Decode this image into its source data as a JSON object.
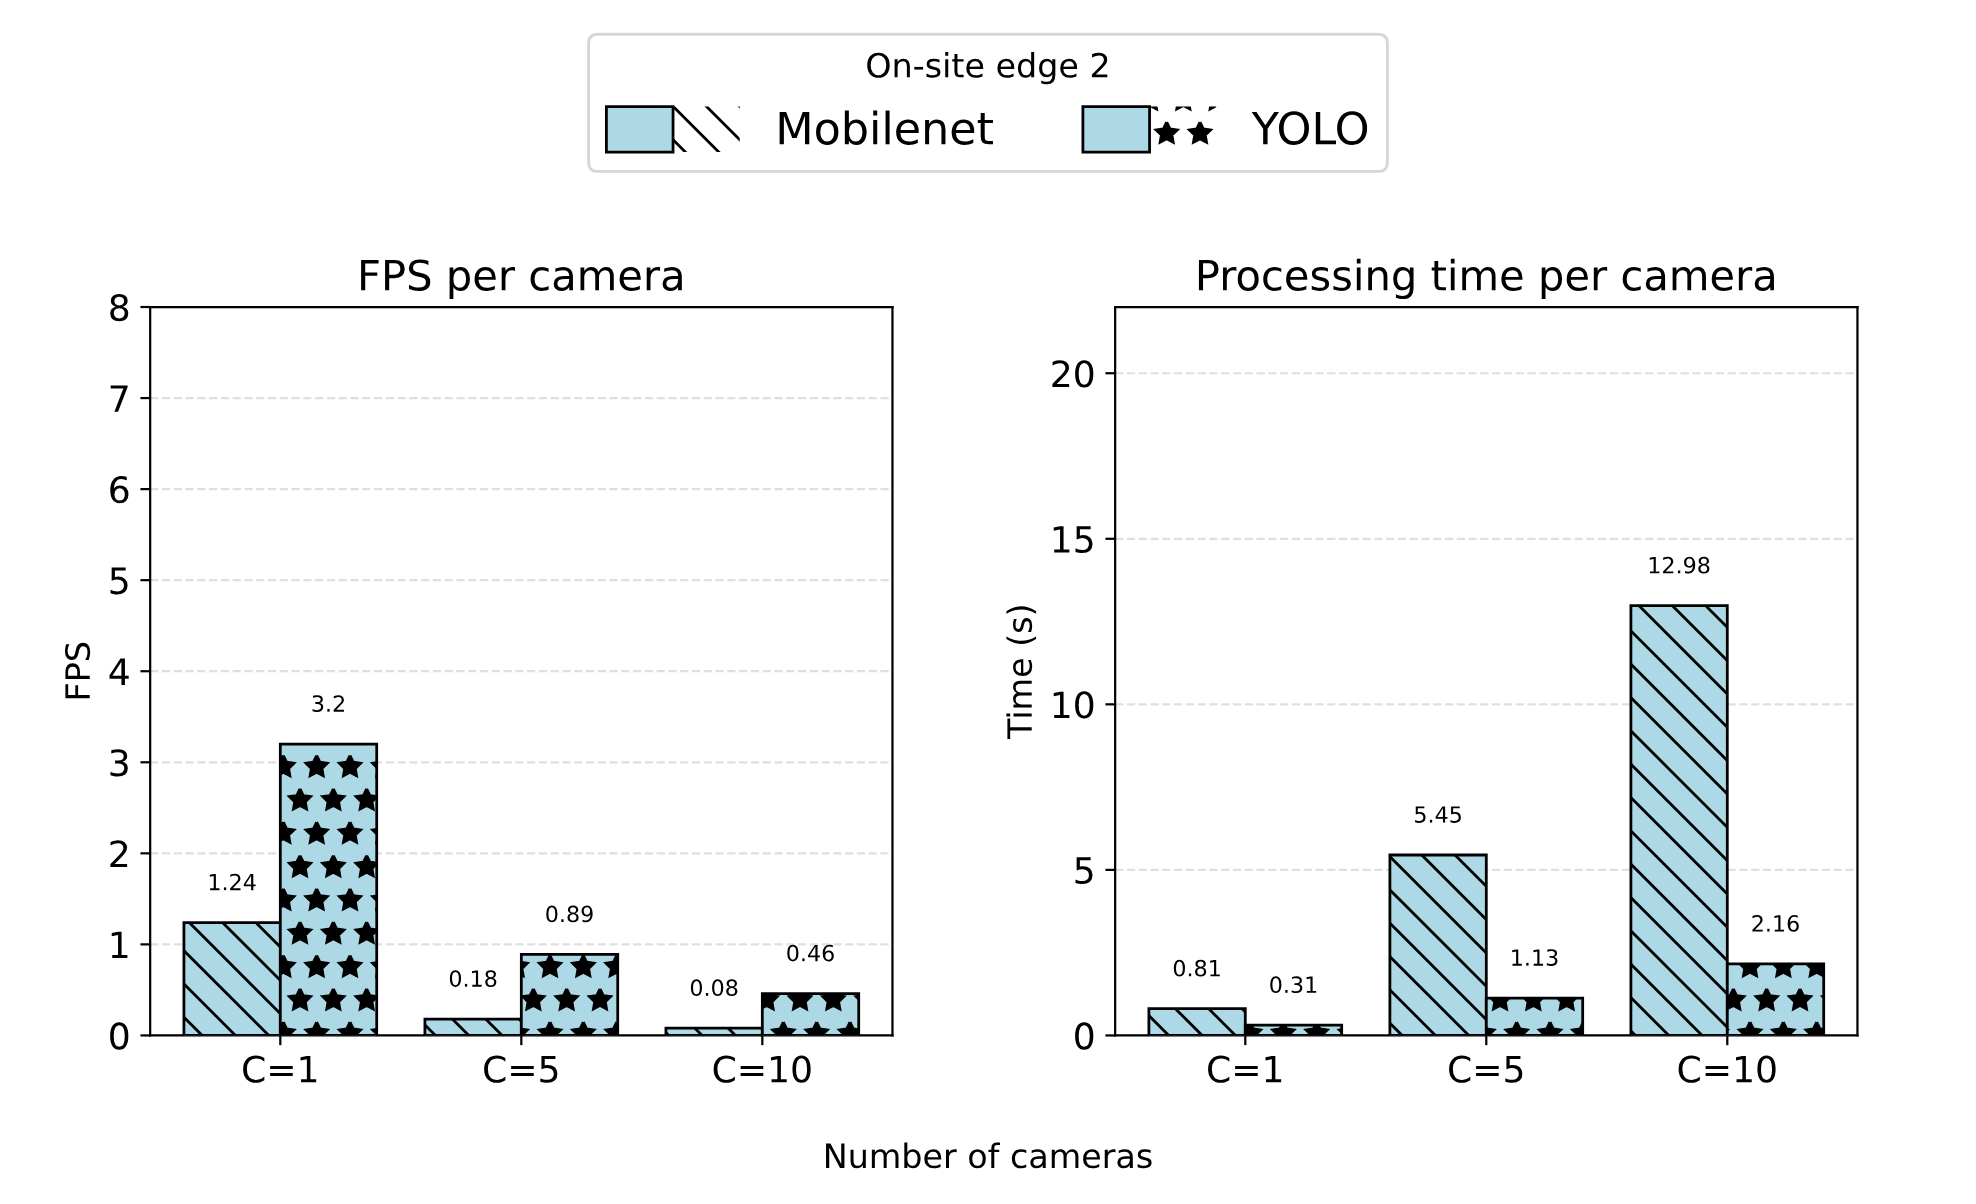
{
  "chart_data": [
    {
      "type": "bar",
      "title": "FPS per camera",
      "xlabel": "Number of cameras",
      "ylabel": "FPS",
      "categories": [
        "C=1",
        "C=5",
        "C=10"
      ],
      "series": [
        {
          "name": "Mobilenet",
          "color": "#add8e6",
          "values": [
            1.24,
            0.18,
            0.08
          ]
        },
        {
          "name": "YOLO",
          "color": "#add8e6",
          "values": [
            3.2,
            0.89,
            0.46
          ]
        }
      ],
      "ylim": [
        0,
        8
      ],
      "yticks": [
        0,
        1,
        2,
        3,
        4,
        5,
        6,
        7,
        8
      ],
      "grid": "y",
      "data_labels": true,
      "legend": "top",
      "legend_title": "On-site edge 2"
    },
    {
      "type": "bar",
      "title": "Processing time per camera",
      "ylabel": "Time (s)",
      "categories": [
        "C=1",
        "C=5",
        "C=10"
      ],
      "series": [
        {
          "color": "#add8e6",
          "values": [
            0.81,
            5.45,
            12.98
          ]
        },
        {
          "color": "#add8e6",
          "values": [
            0.31,
            1.13,
            2.16
          ]
        }
      ],
      "ylim": [
        0,
        22
      ],
      "yticks": [
        0,
        5,
        10,
        15,
        20
      ],
      "grid": "y",
      "data_labels": true
    }
  ]
}
